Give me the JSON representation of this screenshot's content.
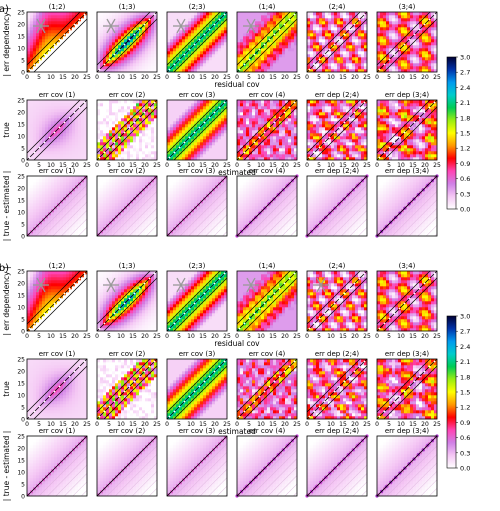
{
  "colors": {
    "colormap_stops": [
      "#ffffff",
      "#f4c6f4",
      "#d080e6",
      "#ff44b4",
      "#ff0000",
      "#ff9900",
      "#ffff00",
      "#99ee11",
      "#00cc55",
      "#00cccc",
      "#0099ee",
      "#0033aa",
      "#000033"
    ],
    "diagonal_line": "#000000",
    "hatch": "#c8a0c8",
    "asterisk": "#999999"
  },
  "chart_data": [
    {
      "panel_label": "(a)",
      "type": "heatmap",
      "rows": [
        {
          "ylabel": "| err dependency |",
          "xlabel": "residual cov",
          "titles": [
            "(1;2)",
            "(1;3)",
            "(2;3)",
            "(1;4)",
            "(2;4)",
            "(3;4)"
          ],
          "asterisk": [
            true,
            true,
            true,
            true,
            false,
            false
          ]
        },
        {
          "ylabel": "true",
          "xlabel": "estimated",
          "titles": [
            "err cov (1)",
            "err cov (2)",
            "err cov (3)",
            "err cov (4)",
            "err dep (2;4)",
            "err dep (3;4)"
          ],
          "asterisk": [
            false,
            false,
            false,
            false,
            false,
            false
          ]
        },
        {
          "ylabel": "| true - estimated |",
          "xlabel": "",
          "titles": [
            "err cov (1)",
            "err cov (2)",
            "err cov (3)",
            "err cov (4)",
            "err dep (2;4)",
            "err dep (3;4)"
          ],
          "asterisk": [
            false,
            false,
            false,
            false,
            false,
            false
          ]
        }
      ]
    },
    {
      "panel_label": "(b)",
      "type": "heatmap",
      "rows": [
        {
          "ylabel": "| err dependency |",
          "xlabel": "residual cov",
          "titles": [
            "(1;2)",
            "(1;3)",
            "(2;3)",
            "(1;4)",
            "(2;4)",
            "(3;4)"
          ],
          "asterisk": [
            true,
            true,
            true,
            true,
            true,
            false
          ]
        },
        {
          "ylabel": "true",
          "xlabel": "estimated",
          "titles": [
            "err cov (1)",
            "err cov (2)",
            "err cov (3)",
            "err cov (4)",
            "err dep (2;4)",
            "err dep (3;4)"
          ],
          "asterisk": [
            false,
            false,
            false,
            false,
            false,
            false
          ]
        },
        {
          "ylabel": "| true - estimated |",
          "xlabel": "",
          "titles": [
            "err cov (1)",
            "err cov (2)",
            "err cov (3)",
            "err cov (4)",
            "err dep (2;4)",
            "err dep (3;4)"
          ],
          "asterisk": [
            false,
            false,
            false,
            false,
            false,
            false
          ]
        }
      ]
    }
  ],
  "axis": {
    "xlim": [
      0,
      25
    ],
    "ylim": [
      0,
      25
    ],
    "ticks": [
      0,
      5,
      10,
      15,
      20,
      25
    ]
  },
  "colorbar": {
    "range": [
      0.0,
      3.0
    ],
    "ticks": [
      "3.0",
      "2.7",
      "2.4",
      "2.1",
      "1.8",
      "1.5",
      "1.2",
      "0.9",
      "0.6",
      "0.3",
      "0.0"
    ]
  }
}
